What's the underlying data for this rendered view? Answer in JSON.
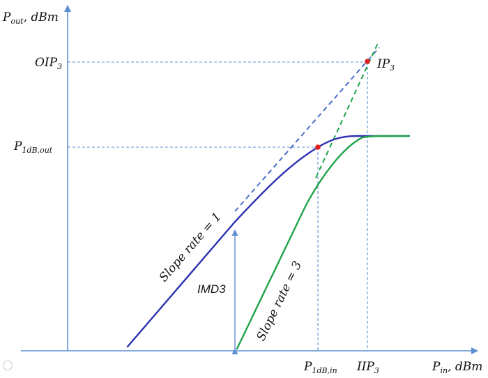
{
  "axes": {
    "y_label_main": "P",
    "y_label_sub": "out",
    "y_label_unit": ", dBm",
    "x_label_main": "P",
    "x_label_sub": "in",
    "x_label_unit": ", dBm"
  },
  "y_markers": {
    "oip3_main": "OIP",
    "oip3_sub": "3",
    "p1db_out_main": "P",
    "p1db_out_sub": "1dB,out"
  },
  "x_markers": {
    "p1db_in_main": "P",
    "p1db_in_sub": "1dB,in",
    "iip3_main": "IIP",
    "iip3_sub": "3"
  },
  "point_labels": {
    "ip3_main": "IP",
    "ip3_sub": "3"
  },
  "annotations": {
    "slope1": "Slope rate = 1",
    "slope3": "Slope rate = 3",
    "imd3": "IMD3"
  },
  "colors": {
    "axis": "#5b8fd4",
    "fundamental": "#2a2fb0",
    "fundamental_extrapolation": "#4a6fc9",
    "third_order": "#1fa34a",
    "third_order_extrapolation": "#1fa34a",
    "guide": "#5b8fd4",
    "marker": "#e02020",
    "imd3_arrow": "#5b8fd4"
  }
}
